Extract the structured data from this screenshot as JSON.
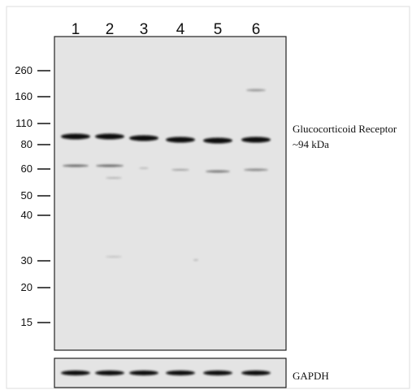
{
  "lanes": [
    "1",
    "2",
    "3",
    "4",
    "5",
    "6"
  ],
  "markers": [
    "260",
    "160",
    "110",
    "80",
    "60",
    "50",
    "40",
    "30",
    "20",
    "15"
  ],
  "annotations": {
    "target": "Glucocorticoid Receptor",
    "size": "~94 kDa",
    "loading_control": "GAPDH"
  }
}
